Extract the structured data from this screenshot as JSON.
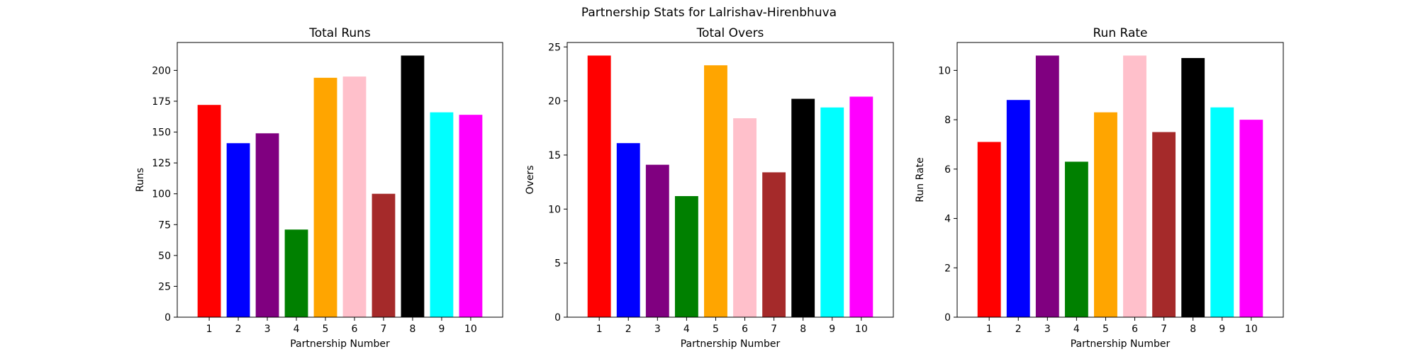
{
  "suptitle": "Partnership Stats for Lalrishav-Hirenbhuva",
  "chart_data": [
    {
      "type": "bar",
      "title": "Total Runs",
      "xlabel": "Partnership Number",
      "ylabel": "Runs",
      "categories": [
        "1",
        "2",
        "3",
        "4",
        "5",
        "6",
        "7",
        "8",
        "9",
        "10"
      ],
      "values": [
        172,
        141,
        149,
        71,
        194,
        195,
        100,
        212,
        166,
        164
      ],
      "colors": [
        "#ff0000",
        "#0000ff",
        "#800080",
        "#008000",
        "#ffa500",
        "#ffc0cb",
        "#a52a2a",
        "#000000",
        "#00ffff",
        "#ff00ff"
      ],
      "ylim": [
        0,
        222.6
      ],
      "yticks": [
        0,
        25,
        50,
        75,
        100,
        125,
        150,
        175,
        200
      ],
      "ytick_labels": [
        "0",
        "25",
        "50",
        "75",
        "100",
        "125",
        "150",
        "175",
        "200"
      ],
      "grid": false
    },
    {
      "type": "bar",
      "title": "Total Overs",
      "xlabel": "Partnership Number",
      "ylabel": "Overs",
      "categories": [
        "1",
        "2",
        "3",
        "4",
        "5",
        "6",
        "7",
        "8",
        "9",
        "10"
      ],
      "values": [
        24.2,
        16.1,
        14.1,
        11.2,
        23.3,
        18.4,
        13.4,
        20.2,
        19.4,
        20.4
      ],
      "colors": [
        "#ff0000",
        "#0000ff",
        "#800080",
        "#008000",
        "#ffa500",
        "#ffc0cb",
        "#a52a2a",
        "#000000",
        "#00ffff",
        "#ff00ff"
      ],
      "ylim": [
        0,
        25.41
      ],
      "yticks": [
        0,
        5,
        10,
        15,
        20,
        25
      ],
      "ytick_labels": [
        "0",
        "5",
        "10",
        "15",
        "20",
        "25"
      ],
      "grid": false
    },
    {
      "type": "bar",
      "title": "Run Rate",
      "xlabel": "Partnership Number",
      "ylabel": "Run Rate",
      "categories": [
        "1",
        "2",
        "3",
        "4",
        "5",
        "6",
        "7",
        "8",
        "9",
        "10"
      ],
      "values": [
        7.1,
        8.8,
        10.6,
        6.3,
        8.3,
        10.6,
        7.5,
        10.5,
        8.5,
        8.0
      ],
      "colors": [
        "#ff0000",
        "#0000ff",
        "#800080",
        "#008000",
        "#ffa500",
        "#ffc0cb",
        "#a52a2a",
        "#000000",
        "#00ffff",
        "#ff00ff"
      ],
      "ylim": [
        0,
        11.13
      ],
      "yticks": [
        0,
        2,
        4,
        6,
        8,
        10
      ],
      "ytick_labels": [
        "0",
        "2",
        "4",
        "6",
        "8",
        "10"
      ],
      "grid": false
    }
  ]
}
